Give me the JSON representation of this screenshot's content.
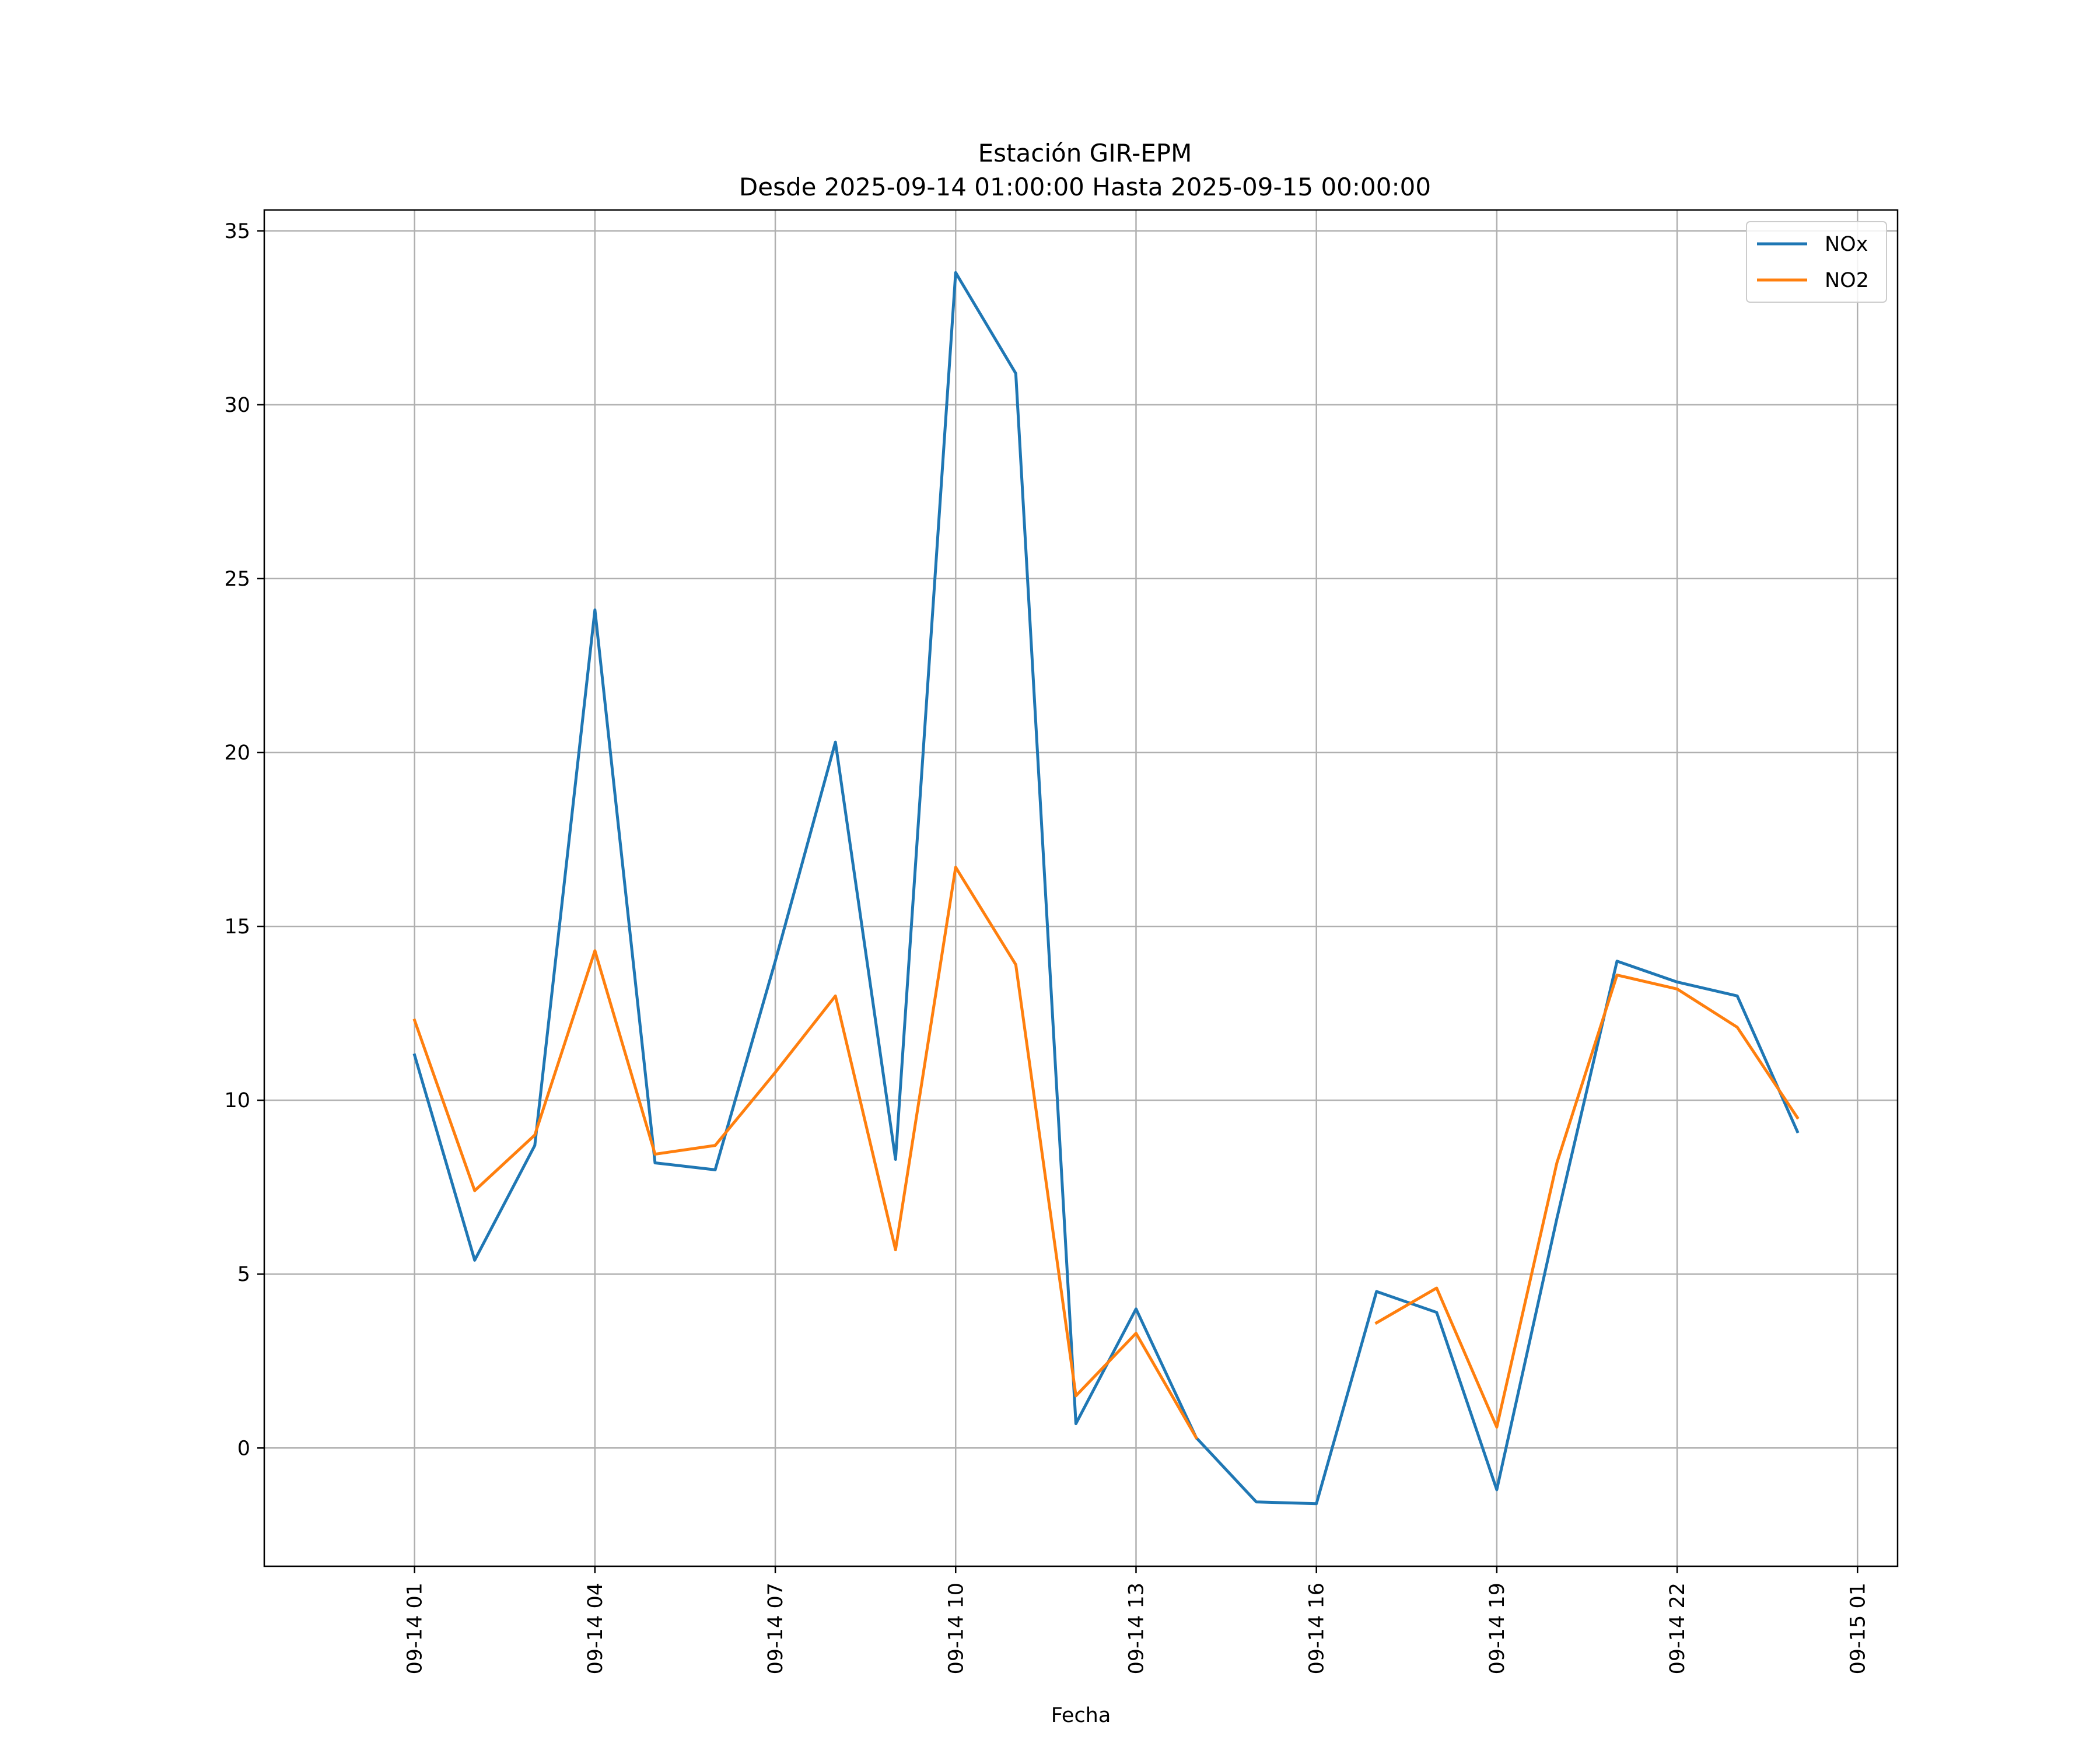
{
  "chart_data": {
    "type": "line",
    "title": "Estación GIR-EPM",
    "subtitle": "Desde 2025-09-14 01:00:00 Hasta 2025-09-15 00:00:00",
    "xlabel": "Fecha",
    "ylabel": "",
    "x": [
      "2025-09-14 01:00",
      "2025-09-14 02:00",
      "2025-09-14 03:00",
      "2025-09-14 04:00",
      "2025-09-14 05:00",
      "2025-09-14 06:00",
      "2025-09-14 07:00",
      "2025-09-14 08:00",
      "2025-09-14 09:00",
      "2025-09-14 10:00",
      "2025-09-14 11:00",
      "2025-09-14 12:00",
      "2025-09-14 13:00",
      "2025-09-14 14:00",
      "2025-09-14 15:00",
      "2025-09-14 16:00",
      "2025-09-14 17:00",
      "2025-09-14 18:00",
      "2025-09-14 19:00",
      "2025-09-14 20:00",
      "2025-09-14 21:00",
      "2025-09-14 22:00",
      "2025-09-14 23:00",
      "2025-09-15 00:00"
    ],
    "series": [
      {
        "name": "NOx",
        "color": "#1f77b4",
        "values": [
          11.3,
          5.4,
          8.7,
          24.1,
          8.2,
          8.0,
          14.0,
          20.3,
          8.3,
          33.8,
          30.9,
          0.7,
          4.0,
          0.3,
          -1.55,
          -1.6,
          4.5,
          3.9,
          -1.2,
          6.6,
          14.0,
          13.4,
          13.0,
          9.1
        ]
      },
      {
        "name": "NO2",
        "color": "#ff7f0e",
        "values": [
          12.3,
          7.4,
          9.0,
          14.3,
          8.45,
          8.7,
          10.8,
          13.0,
          5.7,
          16.7,
          13.9,
          1.5,
          3.3,
          0.3,
          null,
          null,
          3.6,
          4.6,
          0.6,
          8.2,
          13.6,
          13.2,
          12.1,
          9.5
        ]
      }
    ],
    "xticks": [
      "09-14 01",
      "09-14 04",
      "09-14 07",
      "09-14 10",
      "09-14 13",
      "09-14 16",
      "09-14 19",
      "09-14 22",
      "09-15 01"
    ],
    "yticks": [
      0,
      5,
      10,
      15,
      20,
      25,
      30,
      35
    ],
    "ylim": [
      -3.4,
      35.6
    ],
    "xlim": [
      "2025-09-13 22:30",
      "2025-09-15 01:40"
    ],
    "grid": true,
    "legend_position": "top-right"
  }
}
